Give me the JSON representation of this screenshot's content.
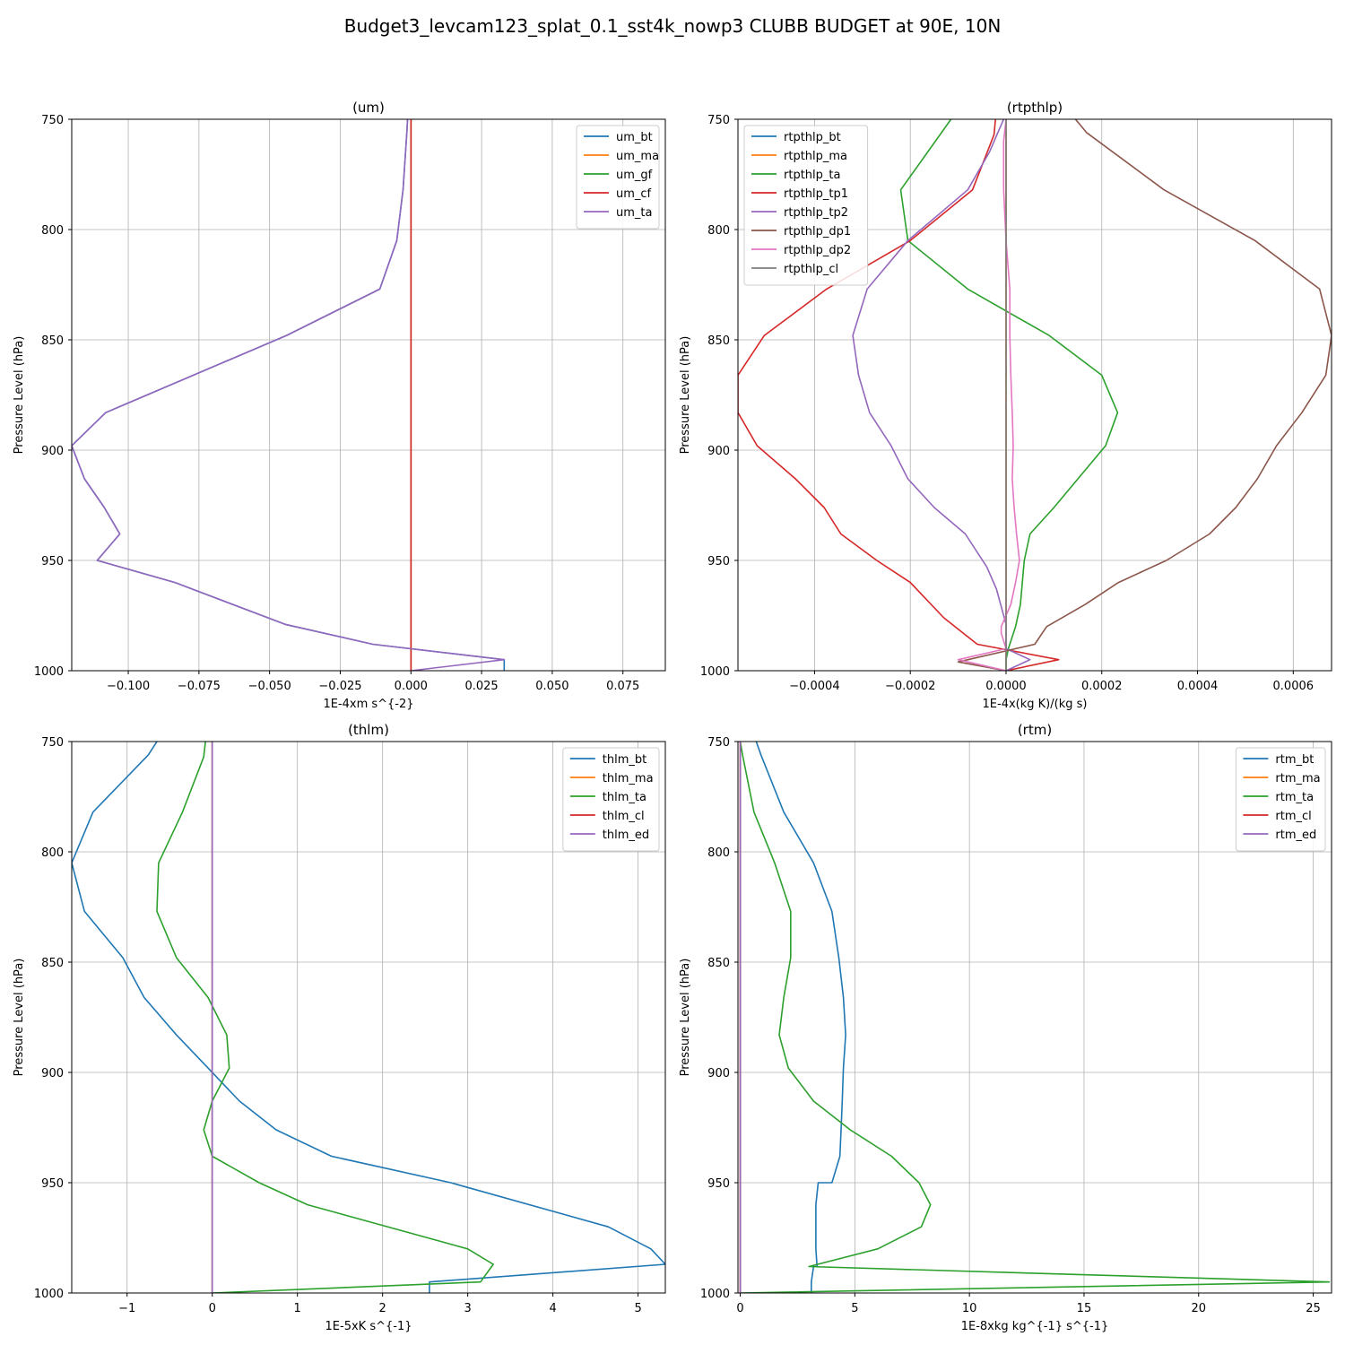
{
  "figure": {
    "title": "Budget3_levcam123_splat_0.1_sst4k_nowp3 CLUBB BUDGET at 90E, 10N"
  },
  "chart_data": [
    {
      "type": "line",
      "title": "(um)",
      "xlabel": "1E-4xm s^{-2}",
      "ylabel": "Pressure Level (hPa)",
      "xlim": [
        -0.12,
        0.09
      ],
      "ylim": [
        1000,
        750
      ],
      "xticks": [
        -0.1,
        -0.075,
        -0.05,
        -0.025,
        0.0,
        0.025,
        0.05,
        0.075
      ],
      "xtick_labels": [
        "−0.100",
        "−0.075",
        "−0.050",
        "−0.025",
        "0.000",
        "0.025",
        "0.050",
        "0.075"
      ],
      "yticks": [
        750,
        800,
        850,
        900,
        950,
        1000
      ],
      "ytick_labels": [
        "750",
        "800",
        "850",
        "900",
        "950",
        "1000"
      ],
      "grid": true,
      "legend_position": "top-right",
      "series": [
        {
          "name": "um_bt",
          "color": "#1f77b4",
          "x": [
            -0.0012,
            -0.0014,
            -0.0028,
            -0.005,
            -0.011,
            -0.044,
            -0.108,
            -0.12,
            -0.1155,
            -0.1085,
            -0.103,
            -0.111,
            -0.0835,
            -0.0445,
            -0.0135,
            0.033,
            0.033
          ],
          "y": [
            750,
            755,
            782,
            805,
            827,
            848,
            883,
            898,
            913,
            926,
            938,
            950,
            960,
            979,
            988,
            995,
            1000
          ]
        },
        {
          "name": "um_ma",
          "color": "#ff7f0e",
          "x": [
            0,
            0
          ],
          "y": [
            750,
            1000
          ]
        },
        {
          "name": "um_gf",
          "color": "#2ca02c",
          "x": [
            0,
            0
          ],
          "y": [
            750,
            1000
          ]
        },
        {
          "name": "um_cf",
          "color": "#d62728",
          "x": [
            0,
            0
          ],
          "y": [
            750,
            1000
          ]
        },
        {
          "name": "um_ta",
          "color": "#9467bd",
          "x": [
            -0.0012,
            -0.0014,
            -0.0028,
            -0.005,
            -0.011,
            -0.044,
            -0.108,
            -0.12,
            -0.1155,
            -0.1085,
            -0.103,
            -0.111,
            -0.0835,
            -0.0445,
            -0.0135,
            0.033,
            0.0
          ],
          "y": [
            750,
            755,
            782,
            805,
            827,
            848,
            883,
            898,
            913,
            926,
            938,
            950,
            960,
            979,
            988,
            995,
            1000
          ]
        }
      ]
    },
    {
      "type": "line",
      "title": "(rtpthlp)",
      "xlabel": "1E-4x(kg K)/(kg s)",
      "ylabel": "Pressure Level (hPa)",
      "xlim": [
        -0.00056,
        0.00068
      ],
      "ylim": [
        1000,
        750
      ],
      "xticks": [
        -0.0004,
        -0.0002,
        0.0,
        0.0002,
        0.0004,
        0.0006
      ],
      "xtick_labels": [
        "−0.0004",
        "−0.0002",
        "0.0000",
        "0.0002",
        "0.0004",
        "0.0006"
      ],
      "yticks": [
        750,
        800,
        850,
        900,
        950,
        1000
      ],
      "ytick_labels": [
        "750",
        "800",
        "850",
        "900",
        "950",
        "1000"
      ],
      "grid": true,
      "legend_position": "top-left",
      "series": [
        {
          "name": "rtpthlp_bt",
          "color": "#1f77b4",
          "x": [
            0,
            0
          ],
          "y": [
            750,
            1000
          ]
        },
        {
          "name": "rtpthlp_ma",
          "color": "#ff7f0e",
          "x": [
            0,
            0
          ],
          "y": [
            750,
            1000
          ]
        },
        {
          "name": "rtpthlp_ta",
          "color": "#2ca02c",
          "x": [
            -0.000115,
            -0.00022,
            -0.000205,
            -8e-05,
            9e-05,
            0.0002,
            0.000233,
            0.000208,
            0.0001,
            5e-05,
            3.8e-05,
            3e-05,
            2e-05,
            5e-06,
            0.0,
            0.0
          ],
          "y": [
            750,
            782,
            805,
            827,
            848,
            866,
            883,
            898,
            926,
            938,
            950,
            970,
            980,
            990,
            995,
            1000
          ]
        },
        {
          "name": "rtpthlp_tp1",
          "color": "#d62728",
          "x": [
            -2.2e-05,
            -2.5e-05,
            -7e-05,
            -0.0002,
            -0.000375,
            -0.000505,
            -0.00056,
            -0.00056,
            -0.00052,
            -0.00044,
            -0.00038,
            -0.000345,
            -0.00027,
            -0.0002,
            -0.00013,
            -6e-05,
            0.00011,
            0.0
          ],
          "y": [
            750,
            757,
            782,
            805,
            827,
            848,
            866,
            883,
            898,
            913,
            926,
            938,
            950,
            960,
            976,
            988,
            995,
            1000
          ]
        },
        {
          "name": "rtpthlp_tp2",
          "color": "#9467bd",
          "x": [
            -5e-06,
            -3.5e-05,
            -8e-05,
            -0.000205,
            -0.00029,
            -0.00032,
            -0.000308,
            -0.000285,
            -0.00024,
            -0.000205,
            -0.00015,
            -8.5e-05,
            -4e-05,
            -2e-05,
            0.0,
            0.0,
            5e-05,
            0.0
          ],
          "y": [
            750,
            765,
            782,
            805,
            827,
            848,
            866,
            883,
            898,
            913,
            926,
            938,
            953,
            963,
            979,
            990,
            995,
            1000
          ]
        },
        {
          "name": "rtpthlp_dp1",
          "color": "#8c564b",
          "x": [
            0.000145,
            0.000168,
            0.00033,
            0.00052,
            0.000655,
            0.00068,
            0.000668,
            0.000618,
            0.000565,
            0.000525,
            0.00048,
            0.000425,
            0.000335,
            0.000235,
            0.000165,
            8.5e-05,
            6e-05,
            -0.0001,
            0.0
          ],
          "y": [
            750,
            756,
            782,
            805,
            827,
            848,
            866,
            883,
            898,
            913,
            926,
            938,
            950,
            960,
            970,
            980,
            988,
            996,
            1000
          ]
        },
        {
          "name": "rtpthlp_dp2",
          "color": "#e377c2",
          "x": [
            0.0,
            -5e-06,
            -5e-06,
            0.0,
            8e-06,
            8e-06,
            1e-05,
            1.3e-05,
            1.5e-05,
            1.3e-05,
            1.7e-05,
            2.2e-05,
            2.8e-05,
            2e-05,
            1e-05,
            -1e-05,
            -1e-05,
            0.0,
            -0.0001,
            0.0
          ],
          "y": [
            750,
            760,
            782,
            805,
            827,
            848,
            866,
            883,
            898,
            913,
            926,
            938,
            950,
            960,
            970,
            980,
            983,
            990,
            995,
            1000
          ]
        },
        {
          "name": "rtpthlp_cl",
          "color": "#7f7f7f",
          "x": [
            0,
            0
          ],
          "y": [
            750,
            1000
          ]
        }
      ]
    },
    {
      "type": "line",
      "title": "(thlm)",
      "xlabel": "1E-5xK s^{-1}",
      "ylabel": "Pressure Level (hPa)",
      "xlim": [
        -1.65,
        5.32
      ],
      "ylim": [
        1000,
        750
      ],
      "xticks": [
        -1,
        0,
        1,
        2,
        3,
        4,
        5
      ],
      "xtick_labels": [
        "−1",
        "0",
        "1",
        "2",
        "3",
        "4",
        "5"
      ],
      "yticks": [
        750,
        800,
        850,
        900,
        950,
        1000
      ],
      "ytick_labels": [
        "750",
        "800",
        "850",
        "900",
        "950",
        "1000"
      ],
      "grid": true,
      "legend_position": "top-right",
      "series": [
        {
          "name": "thlm_bt",
          "color": "#1f77b4",
          "x": [
            -0.65,
            -0.75,
            -1.4,
            -1.65,
            -1.5,
            -1.05,
            -0.8,
            -0.42,
            -0.05,
            0.32,
            0.75,
            1.4,
            2.8,
            4.65,
            5.15,
            5.32,
            2.55,
            2.55
          ],
          "y": [
            750,
            756,
            782,
            805,
            827,
            848,
            866,
            883,
            898,
            913,
            926,
            938,
            950,
            970,
            980,
            987,
            995,
            1000
          ]
        },
        {
          "name": "thlm_ma",
          "color": "#ff7f0e",
          "x": [
            0,
            0
          ],
          "y": [
            750,
            1000
          ]
        },
        {
          "name": "thlm_ta",
          "color": "#2ca02c",
          "x": [
            -0.08,
            -0.1,
            -0.35,
            -0.63,
            -0.65,
            -0.42,
            -0.05,
            0.17,
            0.2,
            0.0,
            -0.1,
            0.0,
            0.55,
            1.12,
            3.0,
            3.3,
            3.15,
            0.0
          ],
          "y": [
            750,
            757,
            782,
            805,
            827,
            848,
            866,
            883,
            898,
            913,
            926,
            938,
            950,
            960,
            980,
            987,
            995,
            1000
          ]
        },
        {
          "name": "thlm_cl",
          "color": "#d62728",
          "x": [
            0,
            0
          ],
          "y": [
            750,
            1000
          ]
        },
        {
          "name": "thlm_ed",
          "color": "#9467bd",
          "x": [
            0,
            0
          ],
          "y": [
            750,
            1000
          ]
        }
      ]
    },
    {
      "type": "line",
      "title": "(rtm)",
      "xlabel": "1E-8xkg kg^{-1} s^{-1}",
      "ylabel": "Pressure Level (hPa)",
      "xlim": [
        -0.1,
        25.8
      ],
      "ylim": [
        1000,
        750
      ],
      "xticks": [
        0,
        5,
        10,
        15,
        20,
        25
      ],
      "xtick_labels": [
        "0",
        "5",
        "10",
        "15",
        "20",
        "25"
      ],
      "yticks": [
        750,
        800,
        850,
        900,
        950,
        1000
      ],
      "ytick_labels": [
        "750",
        "800",
        "850",
        "900",
        "950",
        "1000"
      ],
      "grid": true,
      "legend_position": "top-right",
      "series": [
        {
          "name": "rtm_bt",
          "color": "#1f77b4",
          "x": [
            0.7,
            0.9,
            1.9,
            3.2,
            4.0,
            4.3,
            4.5,
            4.6,
            4.5,
            4.45,
            4.4,
            4.35,
            4.0,
            3.4,
            3.3,
            3.3,
            3.35,
            3.2,
            3.1,
            3.1
          ],
          "y": [
            750,
            756,
            782,
            805,
            827,
            848,
            866,
            883,
            898,
            913,
            926,
            938,
            950,
            950,
            960,
            980,
            988,
            988,
            995,
            1000
          ]
        },
        {
          "name": "rtm_ma",
          "color": "#ff7f0e",
          "x": [
            0,
            0
          ],
          "y": [
            750,
            1000
          ]
        },
        {
          "name": "rtm_ta",
          "color": "#2ca02c",
          "x": [
            0.0,
            0.1,
            0.6,
            1.5,
            2.2,
            2.2,
            1.9,
            1.7,
            2.1,
            3.2,
            4.8,
            6.6,
            7.8,
            8.3,
            7.9,
            6.0,
            3.0,
            25.7,
            0.0
          ],
          "y": [
            750,
            756,
            782,
            805,
            827,
            848,
            866,
            883,
            898,
            913,
            926,
            938,
            950,
            960,
            970,
            980,
            988,
            995,
            1000
          ]
        },
        {
          "name": "rtm_cl",
          "color": "#d62728",
          "x": [
            0,
            0
          ],
          "y": [
            750,
            1000
          ]
        },
        {
          "name": "rtm_ed",
          "color": "#9467bd",
          "x": [
            0,
            0
          ],
          "y": [
            750,
            1000
          ]
        }
      ]
    }
  ]
}
